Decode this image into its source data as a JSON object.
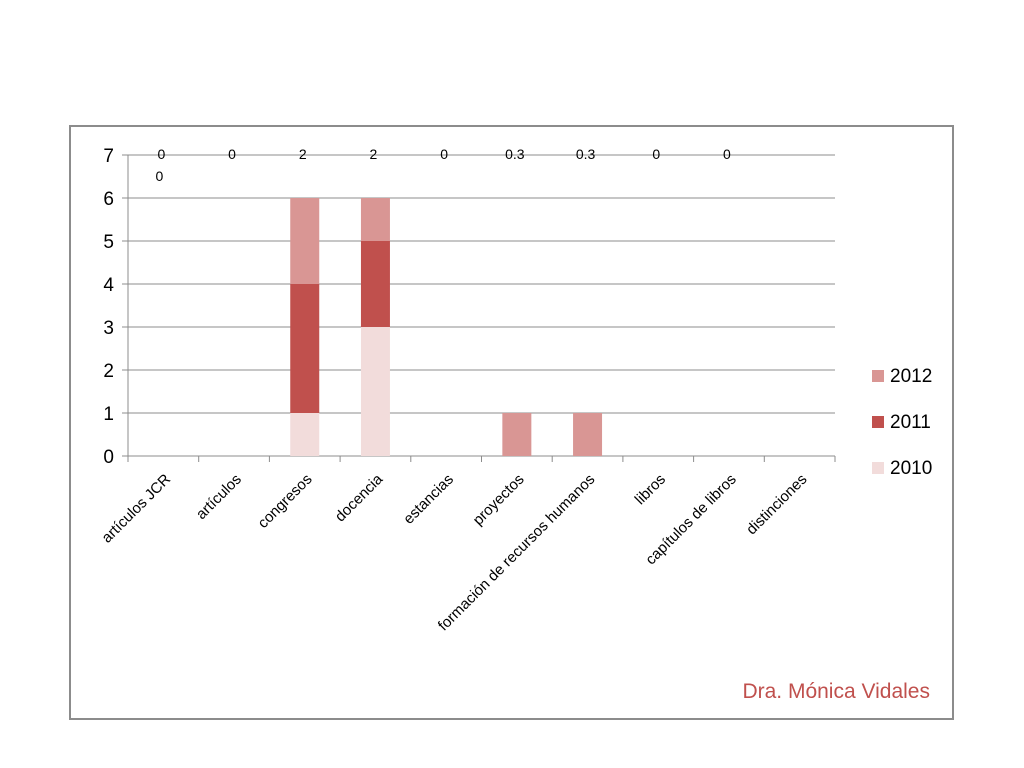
{
  "chart_data": {
    "type": "bar",
    "stacked": true,
    "categories": [
      "artículos JCR",
      "artículos",
      "congresos",
      "docencia",
      "estancias",
      "proyectos",
      "formación de recursos humanos",
      "libros",
      "capítulos de libros",
      "distinciones"
    ],
    "series": [
      {
        "name": "2010",
        "color": "#f2dcdb",
        "values": [
          0,
          0,
          1,
          3,
          0,
          0,
          0,
          0,
          0,
          0
        ]
      },
      {
        "name": "2011",
        "color": "#c0504d",
        "values": [
          0,
          0,
          3,
          2,
          0,
          0,
          0,
          0,
          0,
          0
        ]
      },
      {
        "name": "2012",
        "color": "#d99694",
        "values": [
          0,
          0,
          2,
          1,
          0,
          1,
          1,
          0,
          0,
          0
        ]
      }
    ],
    "top_labels": [
      "0",
      "0",
      "2",
      "2",
      "0",
      "0.3",
      "0.3",
      "0",
      "0"
    ],
    "extra_label": "0",
    "y_ticks": [
      "0",
      "1",
      "2",
      "3",
      "4",
      "5",
      "6",
      "7"
    ],
    "ylim": [
      0,
      7
    ],
    "legend_position": "right",
    "grid": true
  },
  "footer": {
    "author": "Dra. Mónica Vidales"
  }
}
